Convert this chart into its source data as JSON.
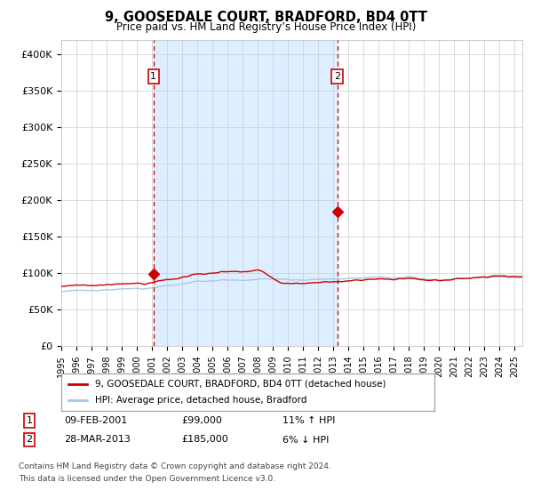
{
  "title": "9, GOOSEDALE COURT, BRADFORD, BD4 0TT",
  "subtitle": "Price paid vs. HM Land Registry’s House Price Index (HPI)",
  "legend_line1": "9, GOOSEDALE COURT, BRADFORD, BD4 0TT (detached house)",
  "legend_line2": "HPI: Average price, detached house, Bradford",
  "annotation1_date_str": "09-FEB-2001",
  "annotation1_price_str": "£99,000",
  "annotation1_hpi_str": "11% ↑ HPI",
  "annotation1_year": 2001.1,
  "annotation1_price": 99000,
  "annotation2_date_str": "28-MAR-2013",
  "annotation2_price_str": "£185,000",
  "annotation2_hpi_str": "6% ↓ HPI",
  "annotation2_year": 2013.25,
  "annotation2_price": 185000,
  "ylabel_ticks": [
    0,
    50000,
    100000,
    150000,
    200000,
    250000,
    300000,
    350000,
    400000
  ],
  "ylabel_labels": [
    "£0",
    "£50K",
    "£100K",
    "£150K",
    "£200K",
    "£250K",
    "£300K",
    "£350K",
    "£400K"
  ],
  "ylim": [
    0,
    420000
  ],
  "xlim_start": 1995,
  "xlim_end": 2025.5,
  "hpi_color": "#a8c8e8",
  "property_color": "#cc0000",
  "shading_color": "#ddeeff",
  "bg_color": "#ffffff",
  "grid_color": "#cccccc",
  "footnote_line1": "Contains HM Land Registry data © Crown copyright and database right 2024.",
  "footnote_line2": "This data is licensed under the Open Government Licence v3.0."
}
